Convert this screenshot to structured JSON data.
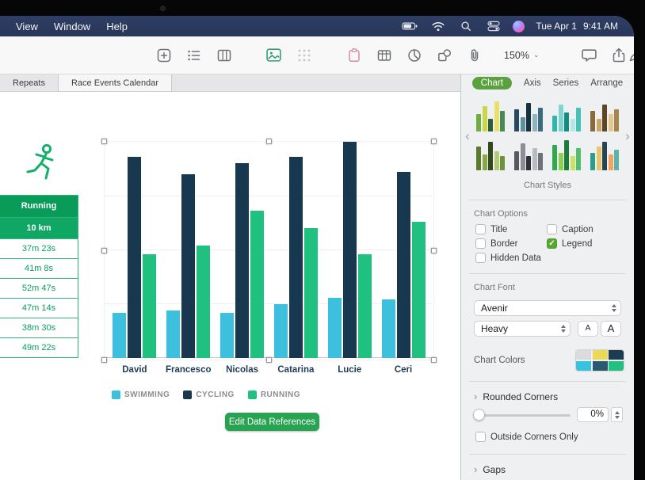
{
  "menu_bar": {
    "menus": [
      "View",
      "Window",
      "Help"
    ],
    "status_icons": [
      "battery-icon",
      "wifi-icon",
      "search-icon",
      "control-center-icon",
      "siri-icon"
    ],
    "date": "Tue Apr 1",
    "time": "9:41 AM"
  },
  "toolbar": {
    "zoom": "150%",
    "icons": [
      "insert-icon",
      "list-icon",
      "columns-icon",
      "photo-icon",
      "dotted-grid-icon",
      "clipboard-icon",
      "table-icon",
      "pie-chart-icon",
      "shapes-icon",
      "attach-icon",
      "comment-icon",
      "share-icon",
      "pen-icon",
      "format-sliders-icon"
    ]
  },
  "sheet_tabs": [
    {
      "label": "Repeats",
      "active": false
    },
    {
      "label": "Race Events Calendar",
      "active": true
    }
  ],
  "side_table": {
    "header": "Running",
    "subheader": "10 km",
    "rows": [
      "37m 23s",
      "41m 8s",
      "52m 47s",
      "47m 14s",
      "38m 30s",
      "49m 22s"
    ]
  },
  "chart_data": {
    "type": "bar",
    "title": "",
    "xlabel": "",
    "ylabel": "",
    "categories": [
      "David",
      "Francesco",
      "Nicolas",
      "Catarina",
      "Lucie",
      "Ceri"
    ],
    "series": [
      {
        "name": "SWIMMING",
        "color": "#3cc0de",
        "values": [
          21,
          22,
          21,
          25,
          28,
          27
        ]
      },
      {
        "name": "CYCLING",
        "color": "#17384f",
        "values": [
          93,
          85,
          90,
          93,
          100,
          86
        ]
      },
      {
        "name": "RUNNING",
        "color": "#1fc080",
        "values": [
          48,
          52,
          68,
          60,
          48,
          63
        ]
      }
    ],
    "ylim": [
      0,
      100
    ],
    "grid": true,
    "legend_position": "bottom"
  },
  "edit_button": "Edit Data References",
  "inspector": {
    "tabs": [
      "Chart",
      "Axis",
      "Series",
      "Arrange"
    ],
    "selected_tab": "Chart",
    "styles_label": "Chart Styles",
    "style_thumbs": [
      {
        "colors": [
          "#6fae3e",
          "#c9d64a",
          "#2e5d3a",
          "#e8e06a",
          "#4a8a4f"
        ],
        "heights": [
          55,
          80,
          40,
          95,
          65
        ]
      },
      {
        "colors": [
          "#274b5e",
          "#5d8fa0",
          "#17323f",
          "#8fb4c0",
          "#3a6a7d"
        ],
        "heights": [
          70,
          45,
          90,
          55,
          75
        ]
      },
      {
        "colors": [
          "#2fb5ad",
          "#7fd6d0",
          "#178a82",
          "#b5e8e4",
          "#45c2b8"
        ],
        "heights": [
          50,
          85,
          60,
          40,
          75
        ]
      },
      {
        "colors": [
          "#8a6a3a",
          "#c9a96a",
          "#5e4524",
          "#e0c993",
          "#a8854a"
        ],
        "heights": [
          65,
          40,
          85,
          55,
          70
        ]
      },
      {
        "colors": [
          "#5a7a2e",
          "#8aa84a",
          "#32491c",
          "#b5c87a",
          "#6f9138"
        ],
        "heights": [
          75,
          50,
          90,
          60,
          45
        ]
      },
      {
        "colors": [
          "#55585e",
          "#8b8e94",
          "#2e3136",
          "#b8bbc1",
          "#6e7178"
        ],
        "heights": [
          60,
          85,
          45,
          70,
          55
        ]
      },
      {
        "colors": [
          "#2fa84f",
          "#8ad14f",
          "#1d7a3a",
          "#c9e06a",
          "#4fbf6a"
        ],
        "heights": [
          80,
          55,
          95,
          45,
          70
        ]
      },
      {
        "colors": [
          "#2a9d8f",
          "#e9c46a",
          "#264653",
          "#f4a261",
          "#5ab5a8"
        ],
        "heights": [
          55,
          75,
          90,
          50,
          65
        ]
      }
    ],
    "options_label": "Chart Options",
    "checkboxes": [
      {
        "label": "Title",
        "checked": false
      },
      {
        "label": "Caption",
        "checked": false
      },
      {
        "label": "Border",
        "checked": false
      },
      {
        "label": "Legend",
        "checked": true
      },
      {
        "label": "Hidden Data",
        "checked": false
      }
    ],
    "font_label": "Chart Font",
    "font_family": "Avenir",
    "font_weight": "Heavy",
    "font_size_small": "A",
    "font_size_large": "A",
    "colors_label": "Chart Colors",
    "swatches": [
      "#d9dcdd",
      "#ecd95a",
      "#1c3c53",
      "#38c2de",
      "#275a71",
      "#22c181"
    ],
    "rounded_corners_label": "Rounded Corners",
    "rounded_value": "0%",
    "outside_corners_label": "Outside Corners Only",
    "gaps_label": "Gaps"
  },
  "colors": {
    "accent_green": "#56a82f",
    "button_green": "#27a351",
    "table_header_green": "#089c58",
    "table_sub_green": "#0fa763",
    "table_text_green": "#0a9e5d",
    "menu_bar_blue": "#2b3a5e",
    "sidebar_bg": "#eff0f2",
    "bezel_black": "#060607"
  }
}
